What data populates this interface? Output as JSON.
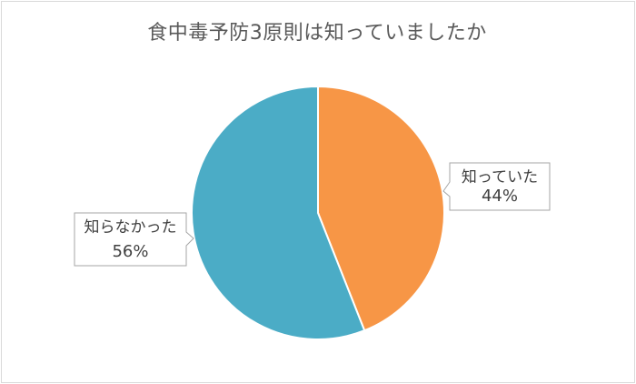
{
  "chart_data": {
    "type": "pie",
    "title": "食中毒予防3原則は知っていましたか",
    "slices": [
      {
        "label": "知っていた",
        "value": 44,
        "value_label": "44%",
        "color": "#f79646"
      },
      {
        "label": "知らなかった",
        "value": 56,
        "value_label": "56%",
        "color": "#4bacc6"
      }
    ],
    "start_angle": "12 o'clock",
    "direction": "clockwise",
    "legend": "none"
  }
}
